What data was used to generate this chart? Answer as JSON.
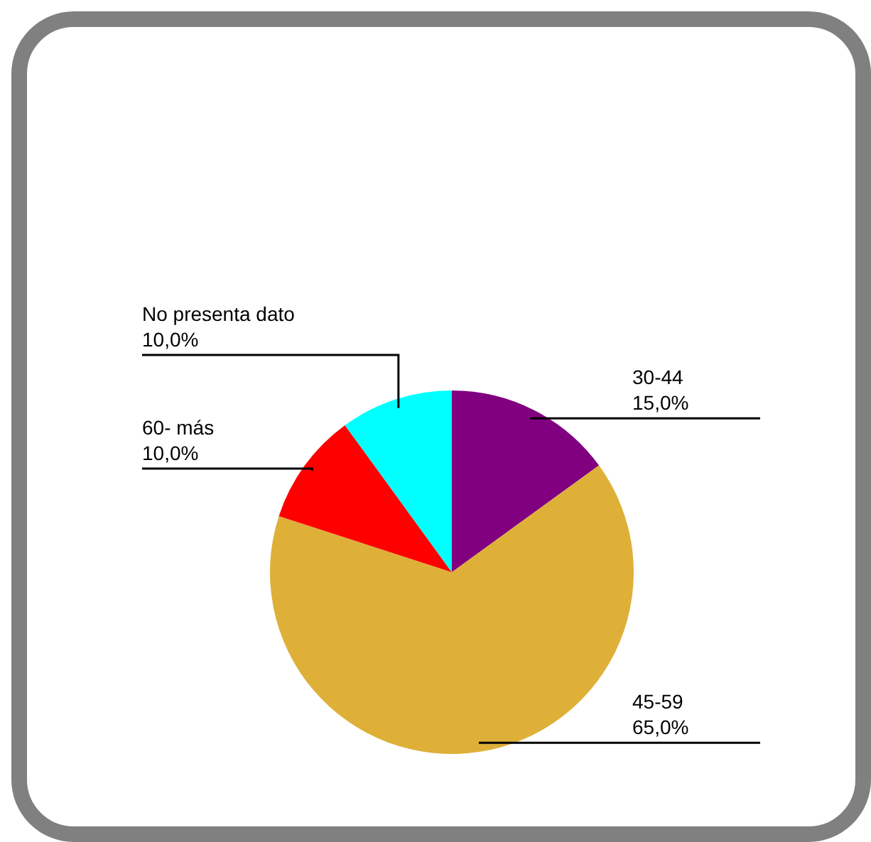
{
  "chart_data": {
    "type": "pie",
    "categories": [
      "30-44",
      "45-59",
      "60- más",
      "No presenta dato"
    ],
    "values": [
      15,
      65,
      10,
      10
    ],
    "colors": [
      "#800080",
      "#deb038",
      "#ff0000",
      "#00ffff"
    ],
    "value_labels": [
      "15,0%",
      "65,0%",
      "10,0%",
      "10,0%"
    ],
    "legend": false
  }
}
